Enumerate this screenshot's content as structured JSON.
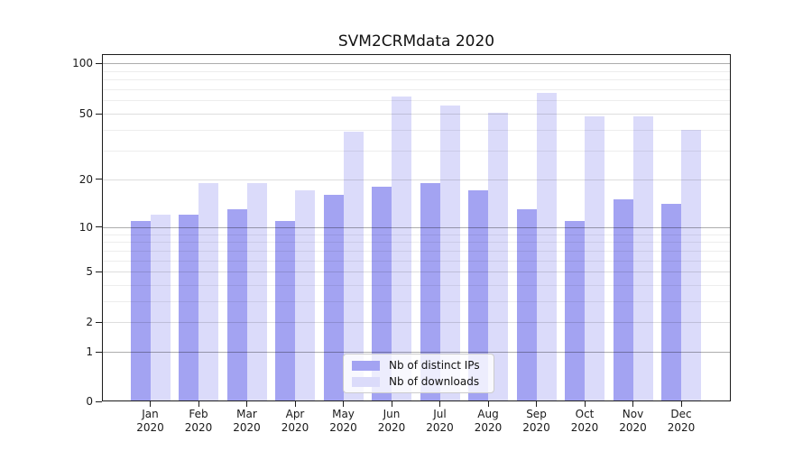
{
  "chart_data": {
    "type": "bar",
    "title": "SVM2CRMdata 2020",
    "year": "2020",
    "categories": [
      "Jan",
      "Feb",
      "Mar",
      "Apr",
      "May",
      "Jun",
      "Jul",
      "Aug",
      "Sep",
      "Oct",
      "Nov",
      "Dec"
    ],
    "series": [
      {
        "name": "Nb of distinct IPs",
        "color": "#a3a3f2",
        "values": [
          11,
          12,
          13,
          11,
          16,
          18,
          19,
          17,
          13,
          11,
          15,
          14
        ]
      },
      {
        "name": "Nb of downloads",
        "color": "#dbdbfa",
        "values": [
          12,
          19,
          19,
          17,
          39,
          63,
          56,
          51,
          67,
          48,
          48,
          40
        ]
      }
    ],
    "xlabel": "",
    "ylabel": "",
    "yscale": "symlog",
    "yticks": [
      0,
      1,
      2,
      5,
      10,
      20,
      50,
      100
    ],
    "ylim": [
      0,
      113
    ],
    "grid": true,
    "legend": {
      "position": "lower-center-inside",
      "entries": [
        "Nb of distinct IPs",
        "Nb of downloads"
      ]
    }
  }
}
